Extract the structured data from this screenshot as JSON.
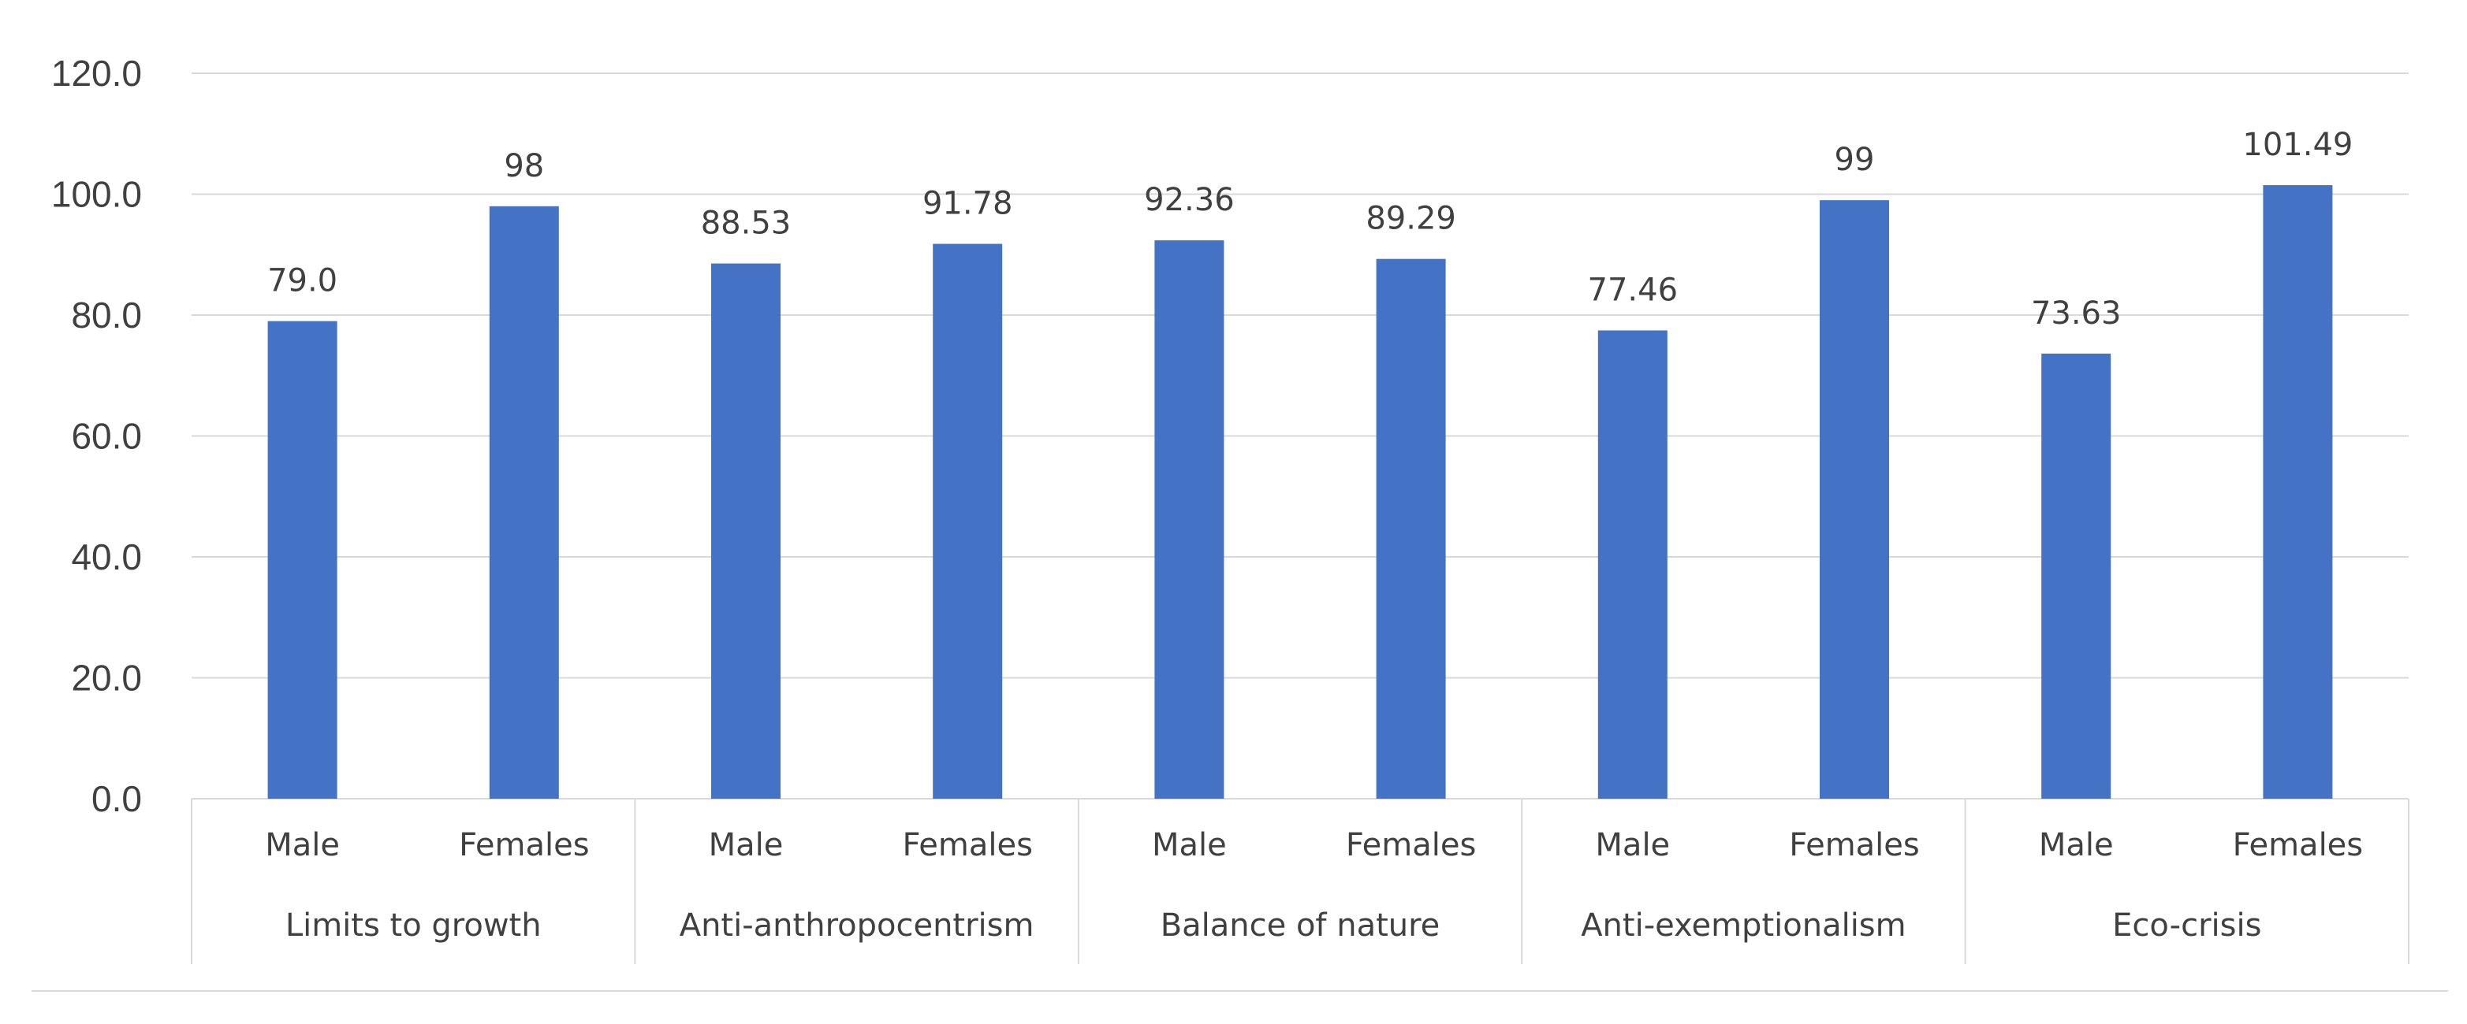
{
  "chart_data": {
    "type": "bar",
    "title": "",
    "xlabel": "",
    "ylabel": "",
    "ylim": [
      0,
      120
    ],
    "y_ticks": [
      "0.0",
      "20.0",
      "40.0",
      "60.0",
      "80.0",
      "100.0",
      "120.0"
    ],
    "grid": true,
    "bar_color": "#4472c4",
    "groups": [
      {
        "name": "Limits to growth",
        "bars": [
          {
            "category": "Male",
            "value": 79.0,
            "label": "79.0"
          },
          {
            "category": "Females",
            "value": 98,
            "label": "98"
          }
        ]
      },
      {
        "name": "Anti-anthropocentrism",
        "bars": [
          {
            "category": "Male",
            "value": 88.53,
            "label": "88.53"
          },
          {
            "category": "Females",
            "value": 91.78,
            "label": "91.78"
          }
        ]
      },
      {
        "name": "Balance of nature",
        "bars": [
          {
            "category": "Male",
            "value": 92.36,
            "label": "92.36"
          },
          {
            "category": "Females",
            "value": 89.29,
            "label": "89.29"
          }
        ]
      },
      {
        "name": "Anti-exemptionalism",
        "bars": [
          {
            "category": "Male",
            "value": 77.46,
            "label": "77.46"
          },
          {
            "category": "Females",
            "value": 99,
            "label": "99"
          }
        ]
      },
      {
        "name": "Eco-crisis",
        "bars": [
          {
            "category": "Male",
            "value": 73.63,
            "label": "73.63"
          },
          {
            "category": "Females",
            "value": 101.49,
            "label": "101.49"
          }
        ]
      }
    ]
  }
}
